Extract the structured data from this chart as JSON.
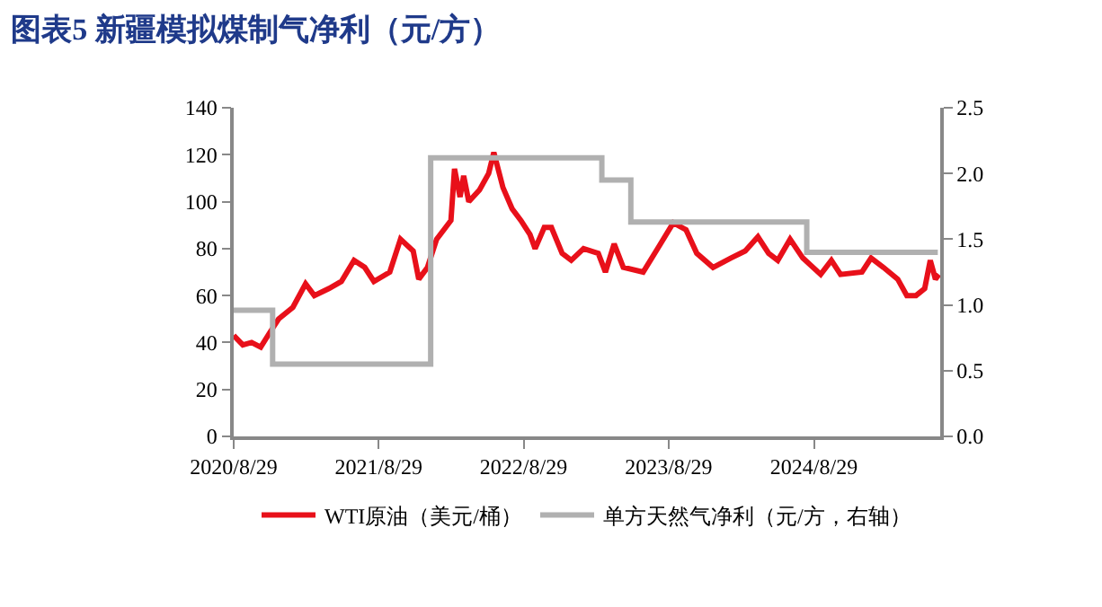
{
  "chart_data": {
    "type": "line",
    "title": "图表5 新疆模拟煤制气净利（元/方）",
    "xlim": [
      "2020-08-29",
      "2025-07-13"
    ],
    "xticks": [
      {
        "value": "2020-08-29",
        "label": "2020/8/29"
      },
      {
        "value": "2021-08-29",
        "label": "2021/8/29"
      },
      {
        "value": "2022-08-29",
        "label": "2022/8/29"
      },
      {
        "value": "2023-08-29",
        "label": "2023/8/29"
      },
      {
        "value": "2024-08-29",
        "label": "2024/8/29"
      }
    ],
    "ylim": [
      0,
      140
    ],
    "yticks": [
      0,
      20,
      40,
      60,
      80,
      100,
      120,
      140
    ],
    "y2lim": [
      0,
      2.5
    ],
    "y2ticks": [
      {
        "value": 0,
        "label": "0.0"
      },
      {
        "value": 0.5,
        "label": "0.5"
      },
      {
        "value": 1,
        "label": "1.0"
      },
      {
        "value": 1.5,
        "label": "1.5"
      },
      {
        "value": 2,
        "label": "2.0"
      },
      {
        "value": 2.5,
        "label": "2.5"
      }
    ],
    "legend": "bottom",
    "marker": "none",
    "line_style": "solid",
    "series": [
      {
        "name": "WTI原油（美元/桶）",
        "color": "#e8101a",
        "x": [
          "2020-08-29",
          "2020-09-21",
          "2020-10-13",
          "2020-11-05",
          "2020-11-27",
          "2020-12-20",
          "2021-01-25",
          "2021-02-26",
          "2021-03-20",
          "2021-04-26",
          "2021-05-27",
          "2021-06-28",
          "2021-07-25",
          "2021-08-17",
          "2021-09-26",
          "2021-10-23",
          "2021-11-24",
          "2021-12-08",
          "2021-12-30",
          "2022-01-22",
          "2022-02-09",
          "2022-02-27",
          "2022-03-08",
          "2022-03-22",
          "2022-03-31",
          "2022-04-13",
          "2022-05-10",
          "2022-06-02",
          "2022-06-15",
          "2022-07-08",
          "2022-07-31",
          "2022-08-22",
          "2022-09-14",
          "2022-09-27",
          "2022-10-20",
          "2022-11-07",
          "2022-12-04",
          "2022-12-27",
          "2023-01-27",
          "2023-03-05",
          "2023-03-23",
          "2023-04-14",
          "2023-05-07",
          "2023-06-26",
          "2023-08-05",
          "2023-09-10",
          "2023-10-12",
          "2023-11-08",
          "2023-12-19",
          "2024-02-02",
          "2024-03-09",
          "2024-04-10",
          "2024-05-07",
          "2024-05-30",
          "2024-06-30",
          "2024-08-01",
          "2024-09-15",
          "2024-10-12",
          "2024-11-04",
          "2024-12-28",
          "2025-01-20",
          "2025-02-20",
          "2025-03-28",
          "2025-04-20",
          "2025-05-13",
          "2025-06-04",
          "2025-06-18",
          "2025-07-01",
          "2025-07-10"
        ],
        "values": [
          43,
          39,
          40,
          38,
          44,
          50,
          55,
          65,
          60,
          63,
          66,
          75,
          72,
          66,
          70,
          84,
          79,
          67,
          72,
          84,
          88,
          92,
          114,
          102,
          111,
          100,
          105,
          112,
          121,
          106,
          97,
          92,
          86,
          80,
          89,
          89,
          78,
          75,
          80,
          78,
          70,
          82,
          72,
          70,
          81,
          91,
          88,
          78,
          72,
          76,
          79,
          85,
          78,
          75,
          84,
          76,
          69,
          75,
          69,
          70,
          76,
          72,
          67,
          60,
          60,
          63,
          75,
          67,
          69
        ]
      },
      {
        "name": "单方天然气净利（元/方，右轴）",
        "color": "#b0b0b0",
        "type": "step",
        "axis": "y2",
        "x": [
          "2020-08-29",
          "2020-12-05",
          "2022-01-07",
          "2023-03-14",
          "2023-05-26",
          "2024-08-11",
          "2025-07-07"
        ],
        "values": [
          0.96,
          0.55,
          2.12,
          1.95,
          1.63,
          1.4,
          1.4
        ]
      }
    ]
  }
}
